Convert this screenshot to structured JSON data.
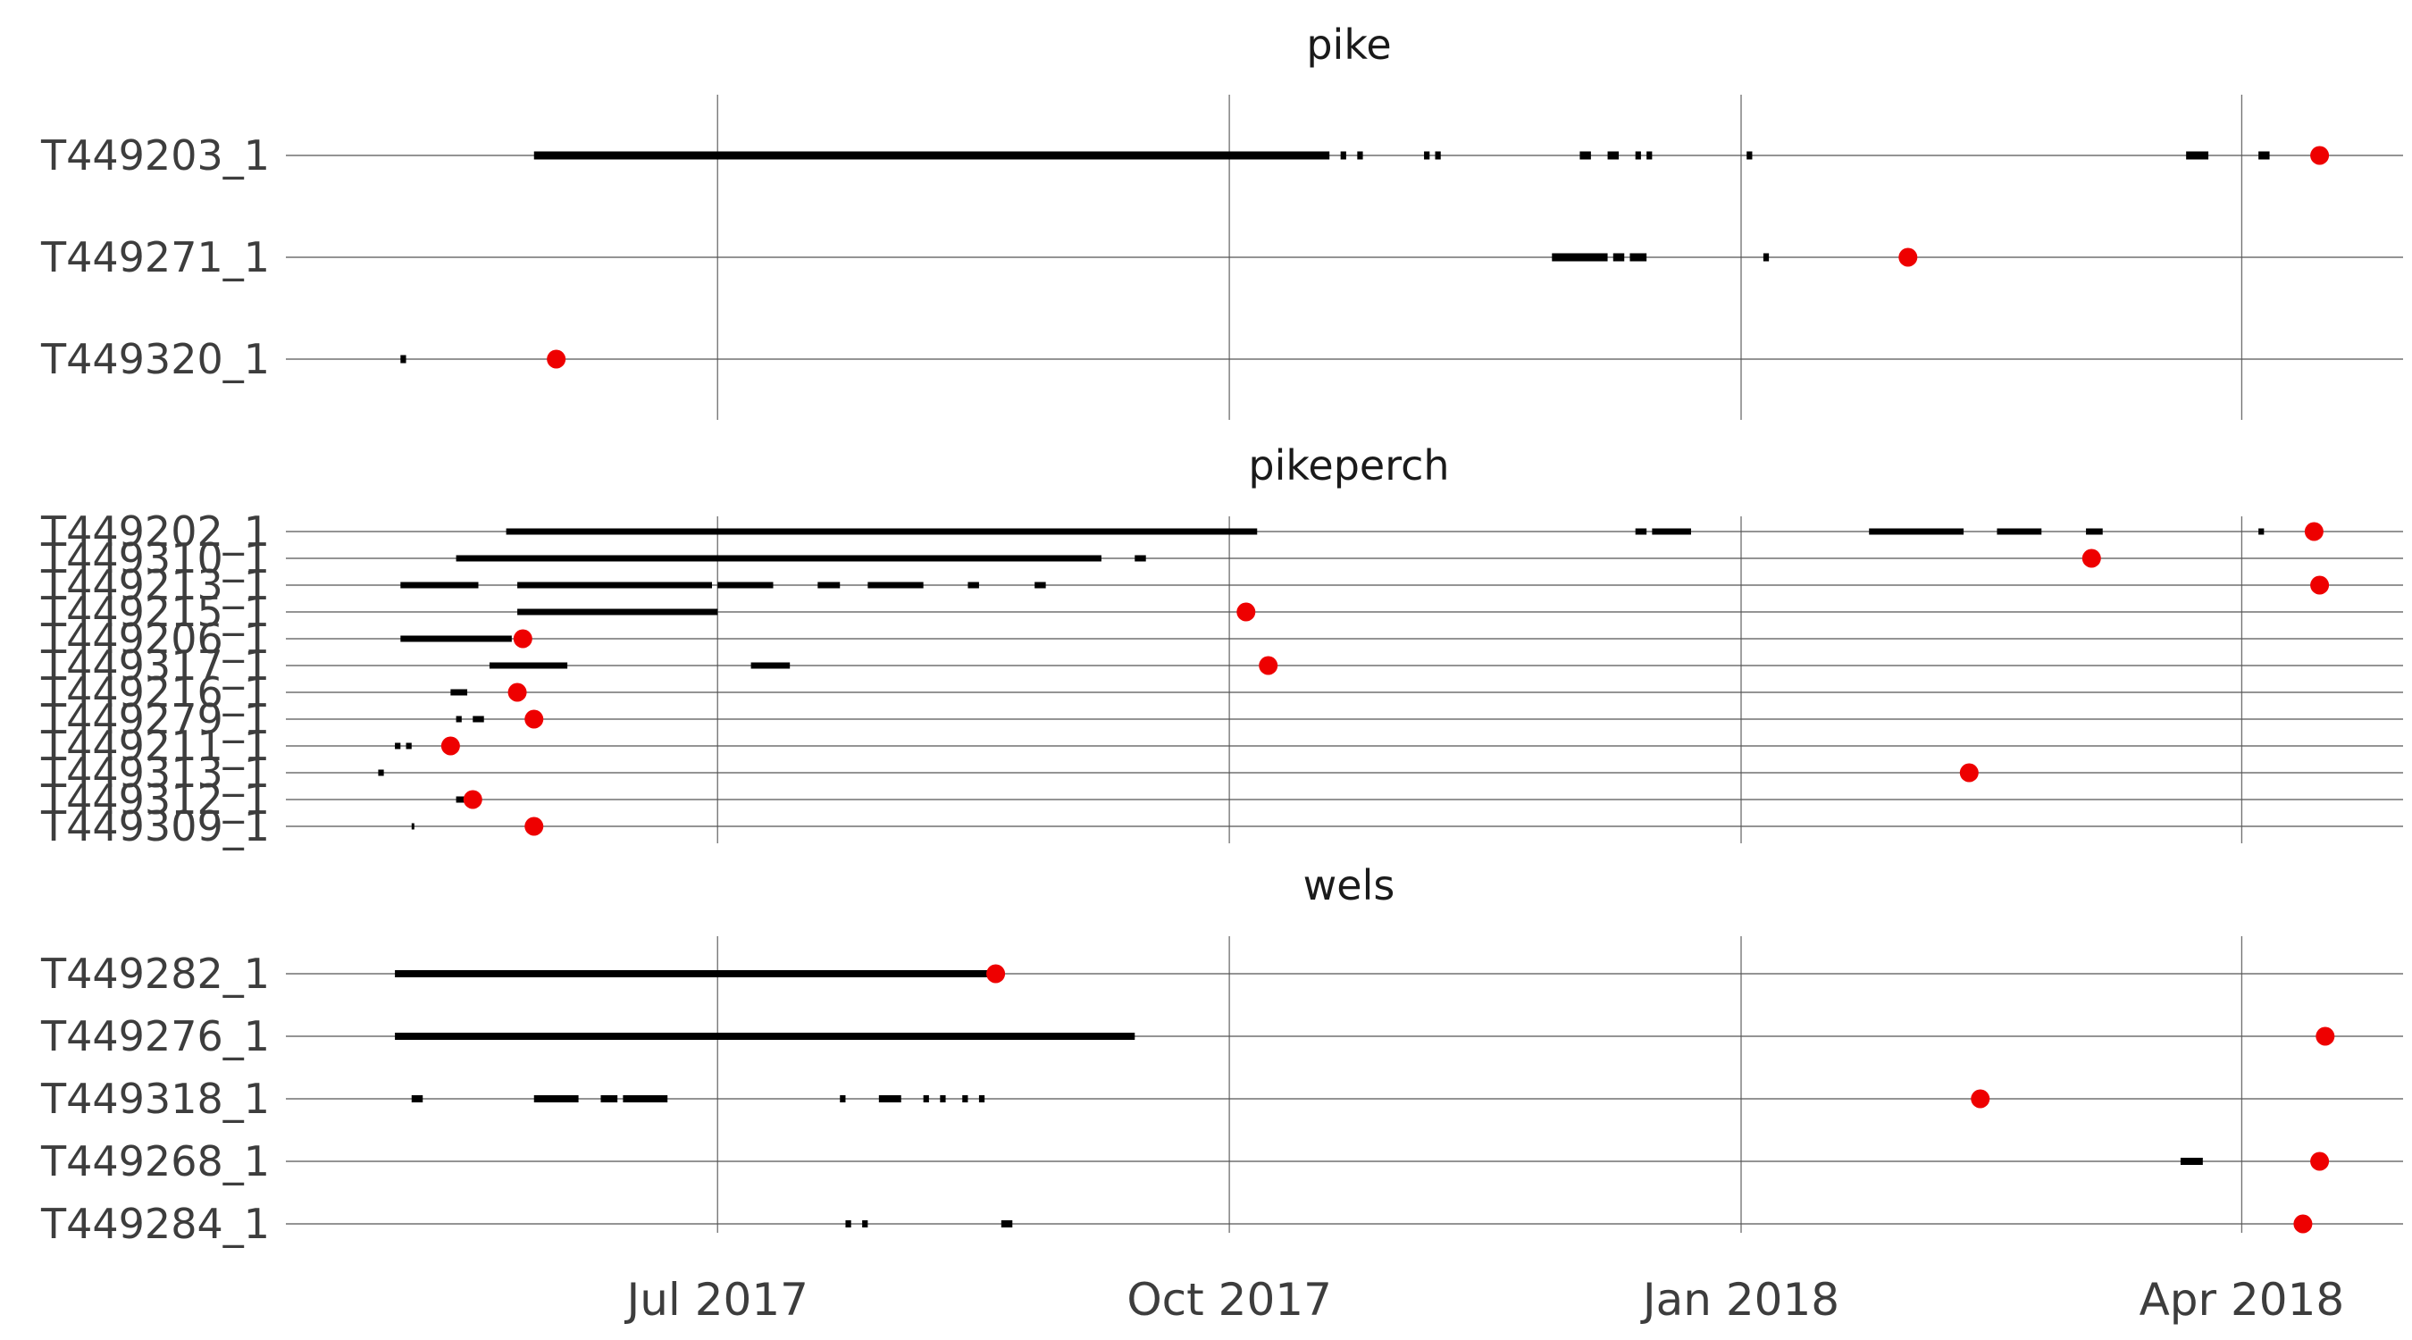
{
  "chart_data": [
    {
      "type": "timeline",
      "title": "pike",
      "rows": [
        {
          "label": "T449203_1",
          "segments": [
            [
              "2017-05-29",
              "2017-10-19"
            ],
            [
              "2017-10-21",
              "2017-10-22"
            ],
            [
              "2017-10-24",
              "2017-10-25"
            ],
            [
              "2017-11-05",
              "2017-11-06"
            ],
            [
              "2017-11-07",
              "2017-11-08"
            ],
            [
              "2017-12-03",
              "2017-12-05"
            ],
            [
              "2017-12-08",
              "2017-12-10"
            ],
            [
              "2017-12-13",
              "2017-12-14"
            ],
            [
              "2017-12-15",
              "2017-12-16"
            ],
            [
              "2018-01-02",
              "2018-01-03"
            ],
            [
              "2018-03-22",
              "2018-03-26"
            ],
            [
              "2018-04-04",
              "2018-04-06"
            ]
          ],
          "end": "2018-04-15"
        },
        {
          "label": "T449271_1",
          "segments": [
            [
              "2017-11-28",
              "2017-12-08"
            ],
            [
              "2017-12-09",
              "2017-12-11"
            ],
            [
              "2017-12-12",
              "2017-12-15"
            ],
            [
              "2018-01-05",
              "2018-01-06"
            ]
          ],
          "end": "2018-01-31"
        },
        {
          "label": "T449320_1",
          "segments": [
            [
              "2017-05-05",
              "2017-05-06"
            ]
          ],
          "end": "2017-06-02"
        }
      ],
      "x_ticks": [
        "2017-07-01",
        "2017-10-01",
        "2018-01-01",
        "2018-04-01"
      ]
    },
    {
      "type": "timeline",
      "title": "pikeperch",
      "rows": [
        {
          "label": "T449202_1",
          "segments": [
            [
              "2017-05-24",
              "2017-10-06"
            ],
            [
              "2017-12-13",
              "2017-12-15"
            ],
            [
              "2017-12-16",
              "2017-12-23"
            ],
            [
              "2018-01-24",
              "2018-02-10"
            ],
            [
              "2018-02-16",
              "2018-02-24"
            ],
            [
              "2018-03-04",
              "2018-03-07"
            ],
            [
              "2018-04-04",
              "2018-04-05"
            ]
          ],
          "end": "2018-04-14"
        },
        {
          "label": "T449310_1",
          "segments": [
            [
              "2017-05-15",
              "2017-09-08"
            ],
            [
              "2017-09-14",
              "2017-09-16"
            ]
          ],
          "end": "2018-03-05"
        },
        {
          "label": "T449213_1",
          "segments": [
            [
              "2017-05-05",
              "2017-05-19"
            ],
            [
              "2017-05-26",
              "2017-06-30"
            ],
            [
              "2017-07-01",
              "2017-07-11"
            ],
            [
              "2017-07-19",
              "2017-07-23"
            ],
            [
              "2017-07-28",
              "2017-08-07"
            ],
            [
              "2017-08-15",
              "2017-08-17"
            ],
            [
              "2017-08-27",
              "2017-08-29"
            ]
          ],
          "end": "2018-04-15"
        },
        {
          "label": "T449215_1",
          "segments": [
            [
              "2017-05-26",
              "2017-07-01"
            ]
          ],
          "end": "2017-10-04"
        },
        {
          "label": "T449206_1",
          "segments": [
            [
              "2017-05-05",
              "2017-05-25"
            ]
          ],
          "end": "2017-05-27"
        },
        {
          "label": "T449317_1",
          "segments": [
            [
              "2017-05-21",
              "2017-06-04"
            ],
            [
              "2017-07-07",
              "2017-07-14"
            ]
          ],
          "end": "2017-10-08"
        },
        {
          "label": "T449216_1",
          "segments": [
            [
              "2017-05-14",
              "2017-05-17"
            ]
          ],
          "end": "2017-05-26"
        },
        {
          "label": "T449279_1",
          "segments": [
            [
              "2017-05-15",
              "2017-05-16"
            ],
            [
              "2017-05-18",
              "2017-05-20"
            ]
          ],
          "end": "2017-05-29"
        },
        {
          "label": "T449211_1",
          "segments": [
            [
              "2017-05-04",
              "2017-05-05"
            ],
            [
              "2017-05-06",
              "2017-05-07"
            ]
          ],
          "end": "2017-05-14"
        },
        {
          "label": "T449313_1",
          "segments": [
            [
              "2017-05-01",
              "2017-05-02"
            ]
          ],
          "end": "2018-02-11"
        },
        {
          "label": "T449312_1",
          "segments": [
            [
              "2017-05-15",
              "2017-05-17"
            ]
          ],
          "end": "2017-05-18"
        },
        {
          "label": "T449309_1",
          "segments": [
            [
              "2017-05-07",
              "2017-05-07"
            ]
          ],
          "end": "2017-05-29"
        }
      ],
      "x_ticks": [
        "2017-07-01",
        "2017-10-01",
        "2018-01-01",
        "2018-04-01"
      ]
    },
    {
      "type": "timeline",
      "title": "wels",
      "rows": [
        {
          "label": "T449282_1",
          "segments": [
            [
              "2017-05-04",
              "2017-08-20"
            ]
          ],
          "end": "2017-08-20"
        },
        {
          "label": "T449276_1",
          "segments": [
            [
              "2017-05-04",
              "2017-09-14"
            ]
          ],
          "end": "2018-04-16"
        },
        {
          "label": "T449318_1",
          "segments": [
            [
              "2017-05-07",
              "2017-05-09"
            ],
            [
              "2017-05-29",
              "2017-06-06"
            ],
            [
              "2017-06-10",
              "2017-06-13"
            ],
            [
              "2017-06-14",
              "2017-06-22"
            ],
            [
              "2017-07-23",
              "2017-07-24"
            ],
            [
              "2017-07-30",
              "2017-08-03"
            ],
            [
              "2017-08-07",
              "2017-08-08"
            ],
            [
              "2017-08-10",
              "2017-08-11"
            ],
            [
              "2017-08-14",
              "2017-08-15"
            ],
            [
              "2017-08-17",
              "2017-08-18"
            ]
          ],
          "end": "2018-02-13"
        },
        {
          "label": "T449268_1",
          "segments": [
            [
              "2018-03-21",
              "2018-03-25"
            ]
          ],
          "end": "2018-04-15"
        },
        {
          "label": "T449284_1",
          "segments": [
            [
              "2017-07-24",
              "2017-07-25"
            ],
            [
              "2017-07-27",
              "2017-07-28"
            ],
            [
              "2017-08-21",
              "2017-08-23"
            ]
          ],
          "end": "2018-04-12"
        }
      ],
      "x_ticks": [
        "2017-07-01",
        "2017-10-01",
        "2018-01-01",
        "2018-04-01"
      ]
    }
  ],
  "x_tick_labels": [
    "Jul 2017",
    "Oct 2017",
    "Jan 2018",
    "Apr 2018"
  ],
  "x_range": [
    "2017-04-16",
    "2018-04-30"
  ],
  "grid": true,
  "colors": {
    "segment": "#000000",
    "end_marker": "#ee0000",
    "grid": "#6e6e6e"
  }
}
